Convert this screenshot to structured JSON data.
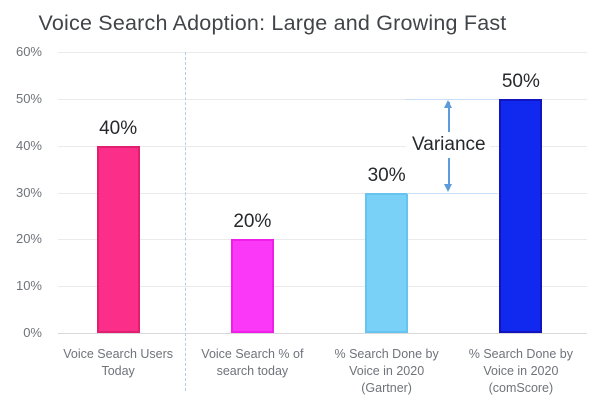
{
  "title": "Voice Search Adoption: Large and Growing Fast",
  "chart_data": {
    "type": "bar",
    "title": "Voice Search Adoption: Large and Growing Fast",
    "categories": [
      [
        "Voice Search Users",
        "Today"
      ],
      [
        "Voice Search % of",
        "search today"
      ],
      [
        "% Search Done by",
        "Voice in 2020",
        "(Gartner)"
      ],
      [
        "% Search Done by",
        "Voice in 2020",
        "(comScore)"
      ]
    ],
    "values": [
      40,
      20,
      30,
      50
    ],
    "bar_labels": [
      "40%",
      "20%",
      "30%",
      "50%"
    ],
    "bar_colors": [
      {
        "fill": "#FB2E8A",
        "stroke": "#E0206F"
      },
      {
        "fill": "#FC38F8",
        "stroke": "#EF1EE9"
      },
      {
        "fill": "#7AD1F7",
        "stroke": "#66C5F0"
      },
      {
        "fill": "#1129EE",
        "stroke": "#1215BF"
      }
    ],
    "ylim": [
      0,
      60
    ],
    "ytick_values": [
      0,
      10,
      20,
      30,
      40,
      50,
      60
    ],
    "ytick_labels": [
      "0%",
      "10%",
      "20%",
      "30%",
      "40%",
      "50%",
      "60%"
    ],
    "grid": "horizontal",
    "legend": "none",
    "annotation": {
      "label": "Variance",
      "from_value": 30,
      "to_value": 50
    },
    "divider_after_category": 1
  },
  "colors": {
    "background": "#FFFFFF",
    "title_text": "#414549",
    "axis_text": "#6F737A",
    "data_label_text": "#26282B",
    "gridline": "#EAEAEC",
    "axis_line": "#D9D9DB",
    "divider_dashed": "#AFCDEE",
    "annotation_arrow": "#5D9CDB"
  }
}
